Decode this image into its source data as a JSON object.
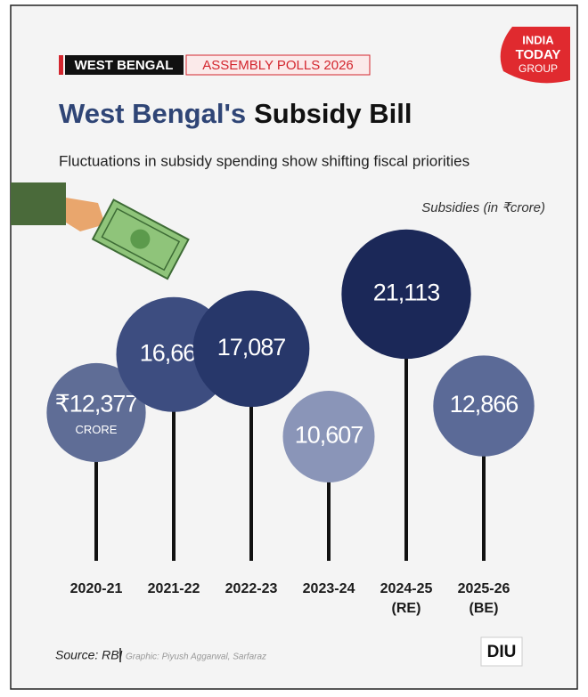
{
  "chart_data": {
    "type": "bubble",
    "tag_state": "WEST BENGAL",
    "tag_event": "ASSEMBLY POLLS 2026",
    "logo": [
      "INDIA",
      "TODAY",
      "GROUP"
    ],
    "title_lead": "West Bengal's",
    "title_main": "Subsidy Bill",
    "subtitle": "Fluctuations in subsidy spending show shifting fiscal priorities",
    "unit_label": "Subsidies (in ₹crore)",
    "categories": [
      "2020-21",
      "2021-22",
      "2022-23",
      "2023-24",
      "2024-25 (RE)",
      "2025-26 (BE)"
    ],
    "values": [
      12377,
      16660,
      17087,
      10607,
      21113,
      12866
    ],
    "value_labels": [
      "₹12,377",
      "16,660",
      "17,087",
      "10,607",
      "21,113",
      "12,866"
    ],
    "first_label_unit": "CRORE",
    "colors": [
      "#5f6d96",
      "#3d4d80",
      "#27376a",
      "#8a95b8",
      "#1b2858",
      "#5b6a97"
    ],
    "source": "Source: RBI",
    "credit": "Graphic: Piyush Aggarwal, Sarfaraz",
    "footer_logo": "DIU"
  }
}
